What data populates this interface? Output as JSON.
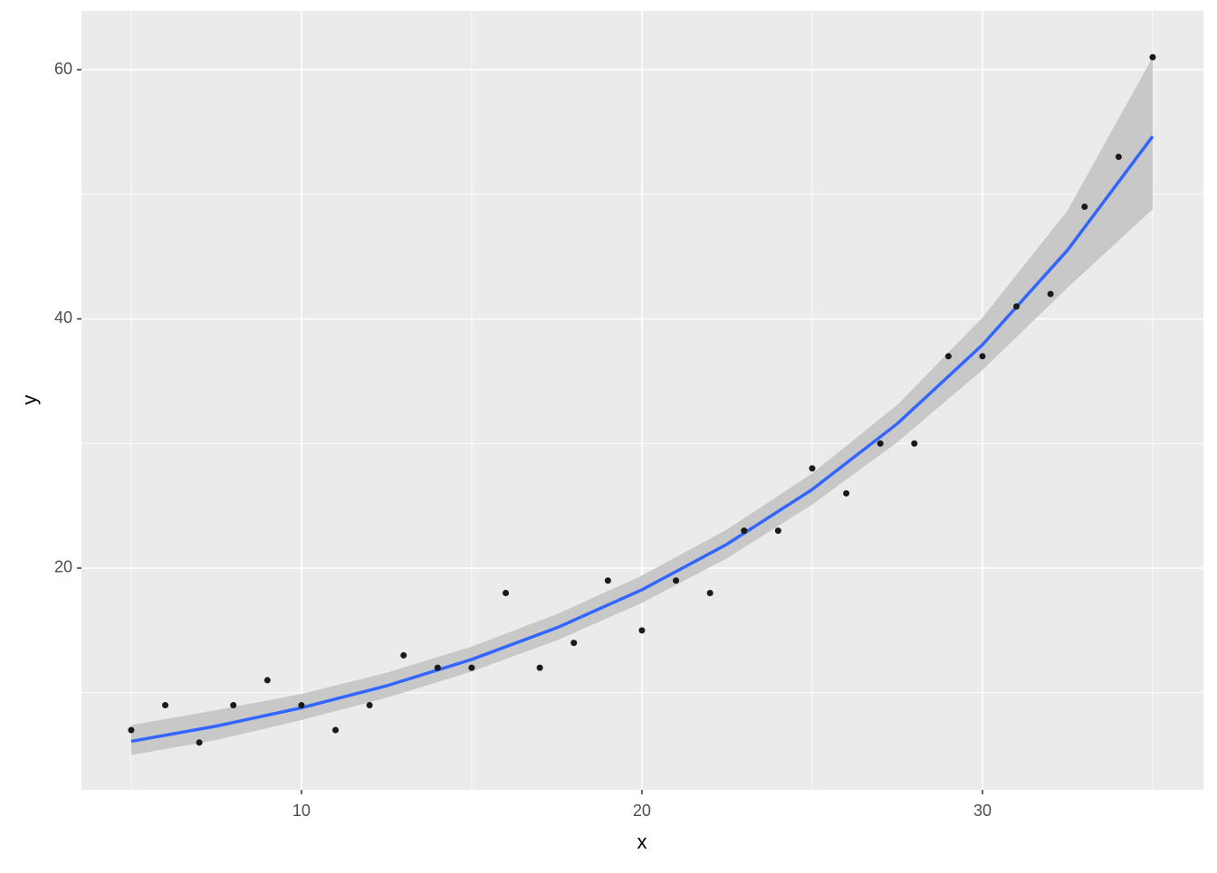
{
  "chart_data": {
    "type": "scatter",
    "x_label": "x",
    "y_label": "y",
    "x": [
      5,
      6,
      7,
      8,
      9,
      10,
      11,
      12,
      13,
      14,
      15,
      16,
      17,
      18,
      19,
      20,
      21,
      22,
      23,
      24,
      25,
      26,
      27,
      28,
      29,
      30,
      31,
      32,
      33,
      34,
      35
    ],
    "values": [
      7,
      9,
      6,
      9,
      11,
      9,
      7,
      9,
      13,
      12,
      12,
      18,
      12,
      14,
      19,
      15,
      19,
      18,
      23,
      23,
      28,
      26,
      30,
      30,
      37,
      37,
      41,
      42,
      49,
      53,
      61
    ],
    "color": "#1a1a1a",
    "smooth": {
      "x": [
        5,
        7.5,
        10,
        12.5,
        15,
        17.5,
        20,
        22.5,
        25,
        27.5,
        30,
        32.5,
        35
      ],
      "values": [
        6.1,
        7.32,
        8.79,
        10.55,
        12.67,
        15.21,
        18.26,
        21.92,
        26.31,
        31.59,
        37.92,
        45.52,
        54.65
      ],
      "lower": [
        5.0,
        6.2,
        7.8,
        9.6,
        11.7,
        14.2,
        17.2,
        20.8,
        25.1,
        30.1,
        35.9,
        42.5,
        48.8
      ],
      "upper": [
        7.4,
        8.6,
        9.9,
        11.6,
        13.7,
        16.3,
        19.4,
        23.1,
        27.6,
        33.1,
        40.1,
        48.7,
        61.0
      ],
      "color": "#3366FF",
      "band_color": "#C8C8C8"
    },
    "xlim": [
      3.54,
      36.49
    ],
    "ylim": [
      2.21,
      64.72
    ],
    "xticks": [
      10,
      20,
      30
    ],
    "yticks": [
      20,
      40,
      60
    ],
    "xminor": [
      5,
      15,
      25,
      35
    ],
    "yminor": [
      10,
      30,
      50
    ],
    "grid": true
  }
}
